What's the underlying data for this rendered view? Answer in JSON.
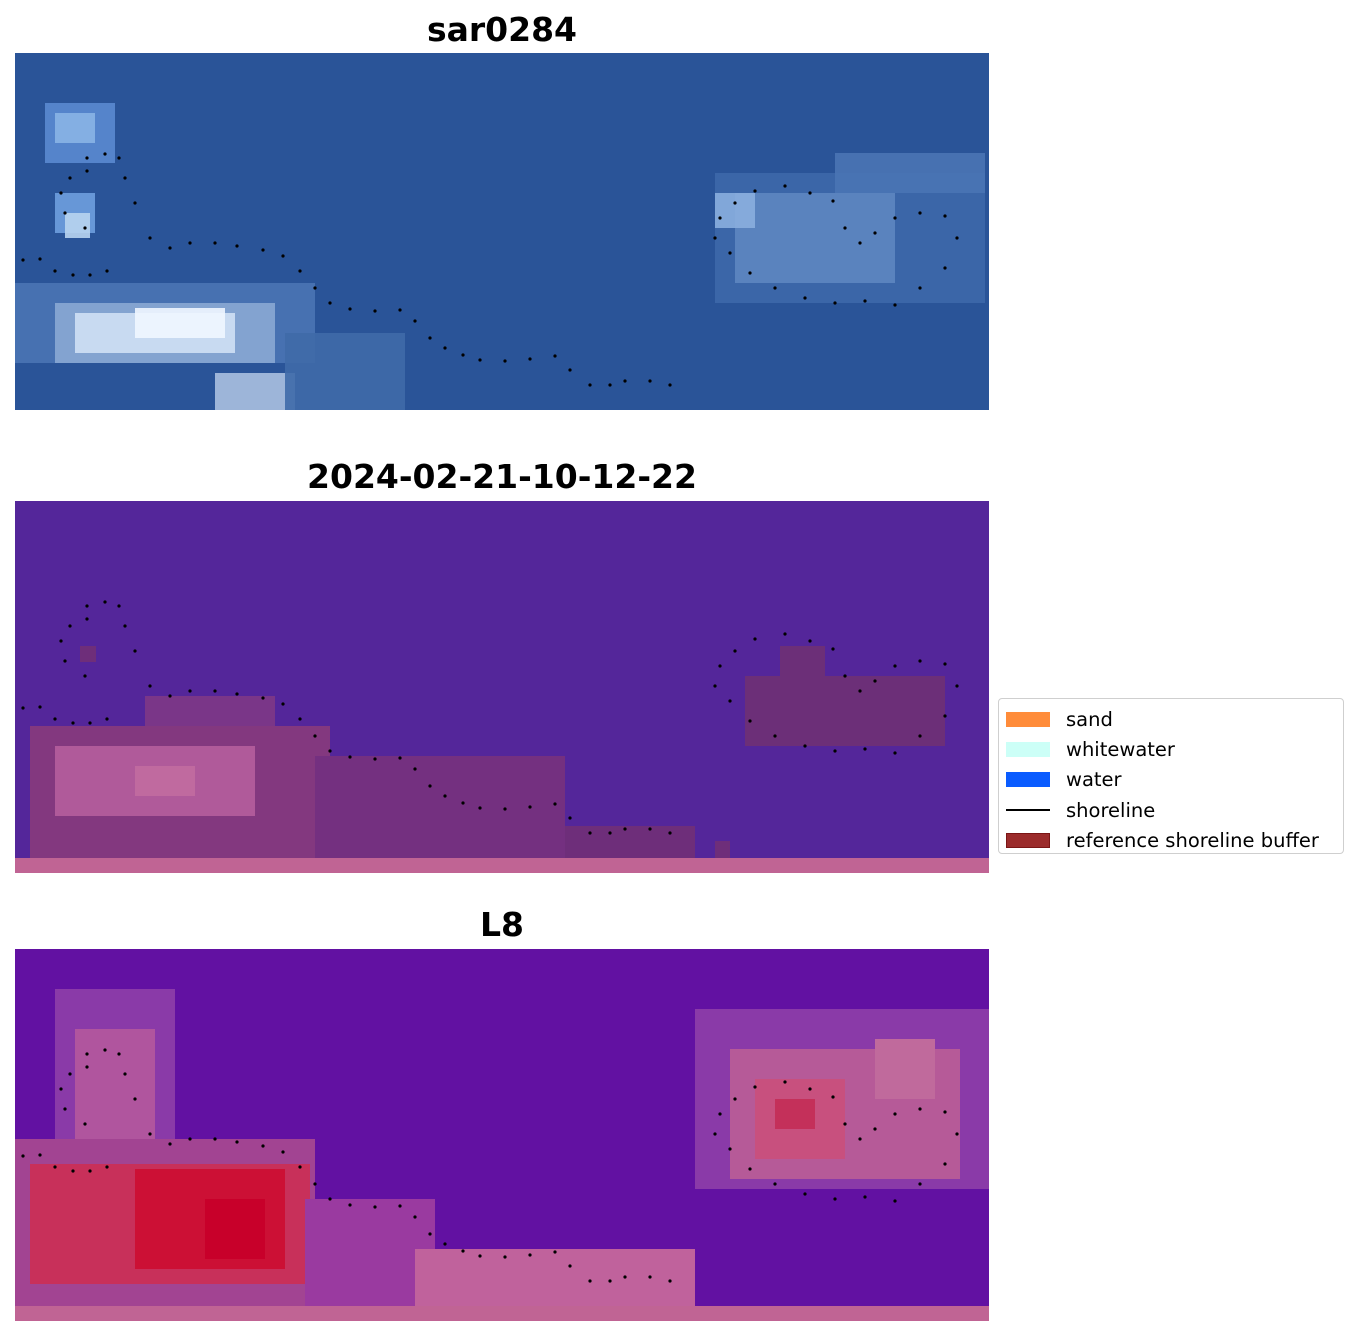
{
  "panels": [
    {
      "title": "sar0284",
      "type": "rgb"
    },
    {
      "title": "2024-02-21-10-12-22",
      "type": "classified"
    },
    {
      "title": "L8",
      "type": "index"
    }
  ],
  "legend": {
    "items": [
      {
        "label": "sand",
        "color": "#ff8c3a",
        "kind": "patch"
      },
      {
        "label": "whitewater",
        "color": "#ccfff7",
        "kind": "patch"
      },
      {
        "label": "water",
        "color": "#0a5cff",
        "kind": "patch"
      },
      {
        "label": "shoreline",
        "color": "#000000",
        "kind": "line"
      },
      {
        "label": "reference shoreline buffer",
        "color": "#9b2b2b",
        "kind": "patch"
      }
    ]
  },
  "colors": {
    "rgb_water": "#2a5498",
    "classified_bg": "#54269a",
    "index_bg": "#5a0fa0",
    "buffer_pink": "#c06494",
    "index_red": "#c8102e"
  }
}
